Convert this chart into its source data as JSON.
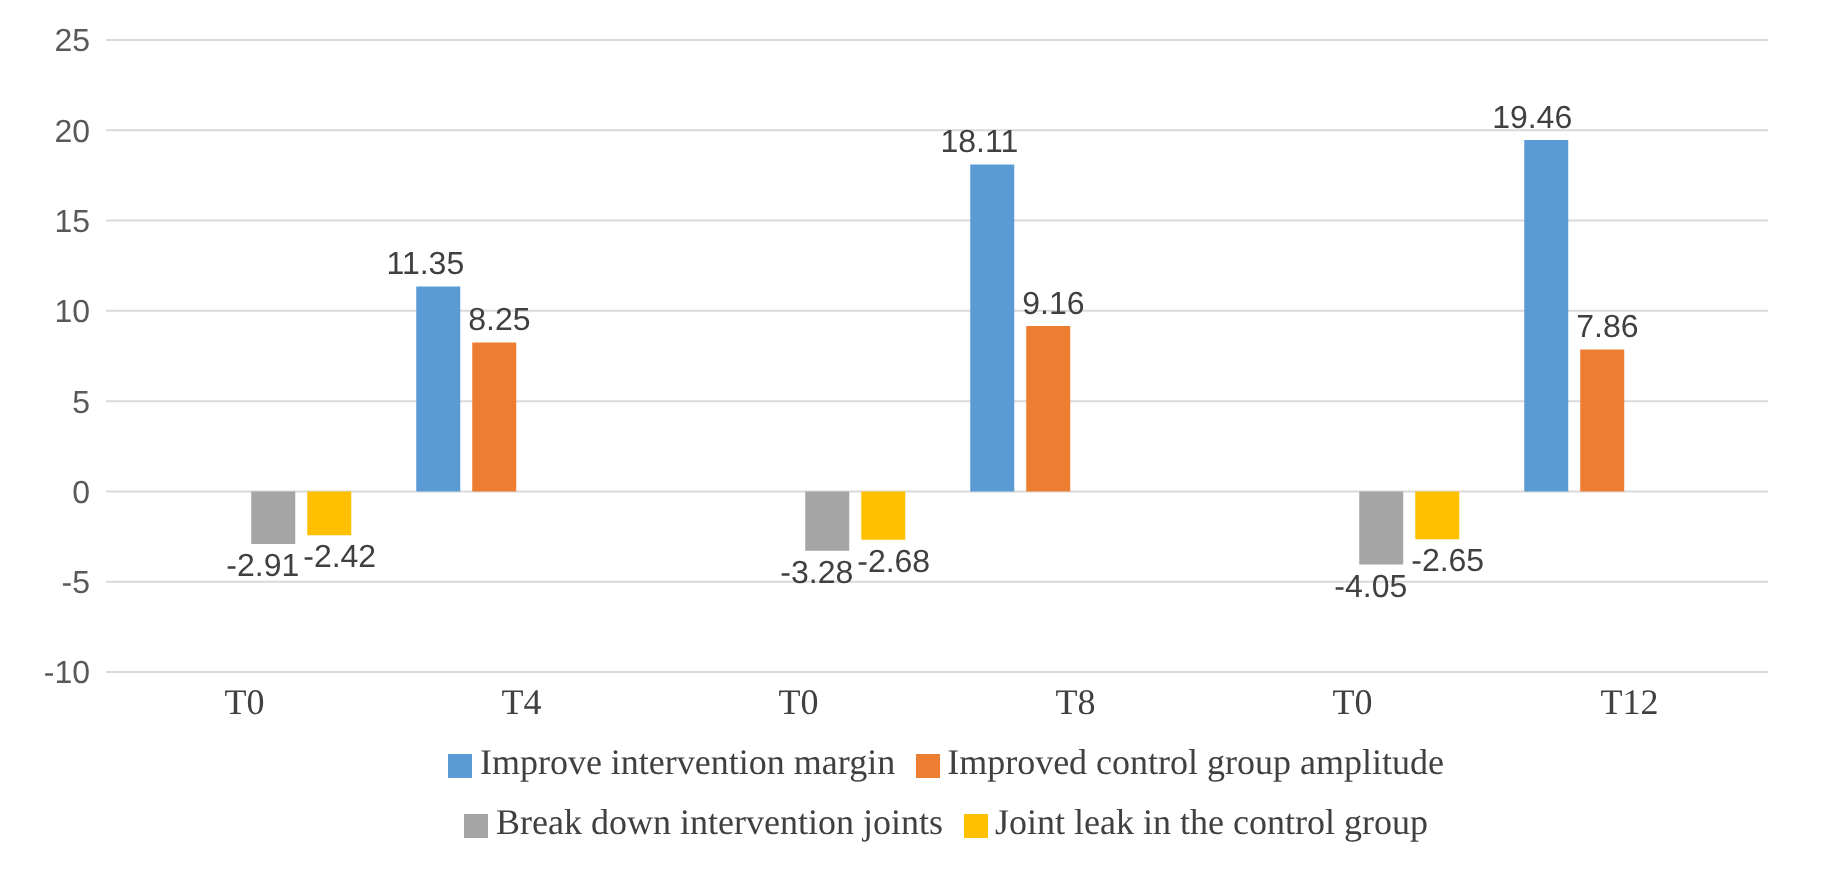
{
  "chart_data": {
    "type": "bar",
    "categories": [
      "T0",
      "T4",
      "T0",
      "T8",
      "T0",
      "T12"
    ],
    "series": [
      {
        "name": "Improve intervention margin",
        "color": "#5b9bd5",
        "values": [
          null,
          11.35,
          null,
          18.11,
          null,
          19.46
        ]
      },
      {
        "name": "Improved control group amplitude",
        "color": "#ed7d31",
        "values": [
          null,
          8.25,
          null,
          9.16,
          null,
          7.86
        ]
      },
      {
        "name": "Break down intervention joints",
        "color": "#a5a5a5",
        "values": [
          -2.91,
          null,
          -3.28,
          null,
          -4.05,
          null
        ]
      },
      {
        "name": "Joint leak in the control group",
        "color": "#ffc000",
        "values": [
          -2.42,
          null,
          -2.68,
          null,
          -2.65,
          null
        ]
      }
    ],
    "ylim": [
      -10,
      25
    ],
    "yticks": [
      -10,
      -5,
      0,
      5,
      10,
      15,
      20,
      25
    ],
    "grid": "y",
    "legend": "bottom",
    "data_labels": true
  }
}
